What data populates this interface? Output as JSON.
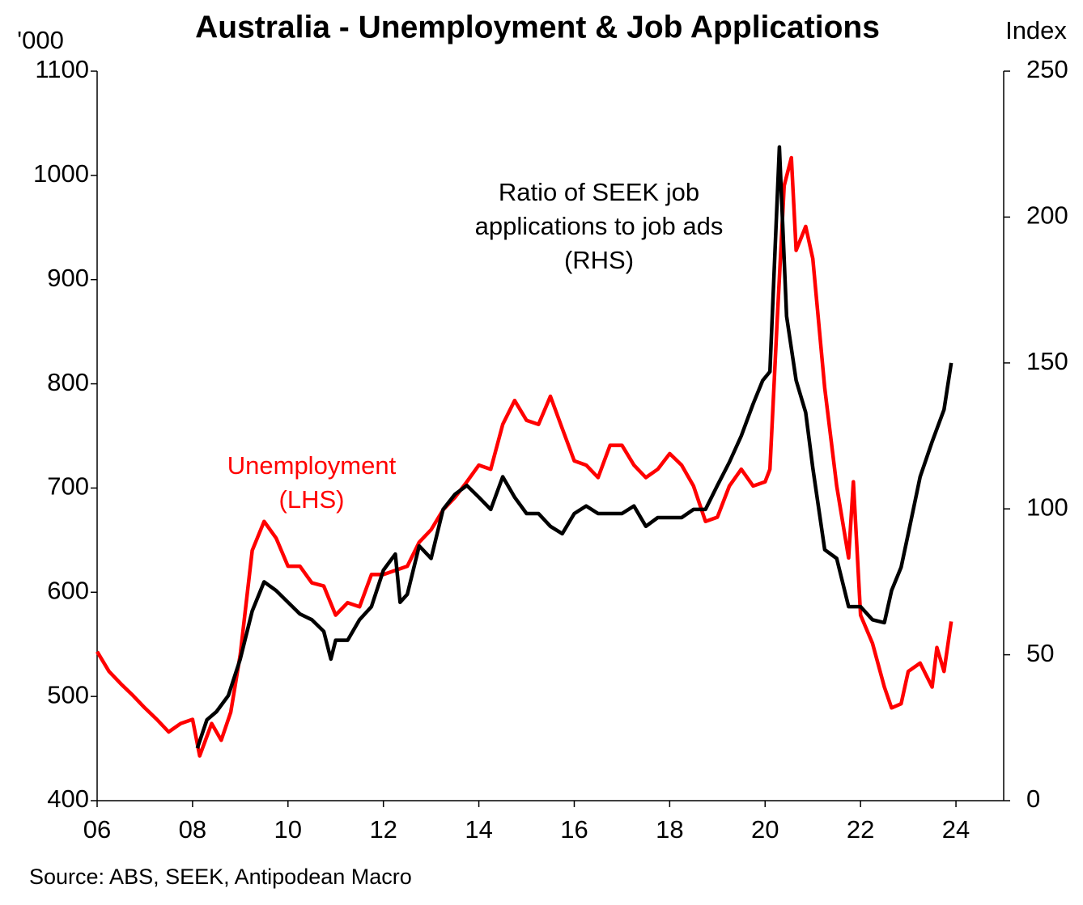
{
  "chart_data": {
    "type": "line",
    "title": "Australia - Unemployment & Job Applications",
    "y_label": "'000",
    "y2_label": "Index",
    "source": "Source: ABS, SEEK, Antipodean Macro",
    "annotations": [
      {
        "lines": [
          "Ratio of SEEK job",
          "applications to job ads",
          "(RHS)"
        ],
        "color": "#000000"
      },
      {
        "lines": [
          "Unemployment",
          "(LHS)"
        ],
        "color": "#ff0000"
      }
    ],
    "xlim": [
      2006,
      2025
    ],
    "xticks": [
      {
        "value": 2006,
        "label": "06"
      },
      {
        "value": 2008,
        "label": "08"
      },
      {
        "value": 2010,
        "label": "10"
      },
      {
        "value": 2012,
        "label": "12"
      },
      {
        "value": 2014,
        "label": "14"
      },
      {
        "value": 2016,
        "label": "16"
      },
      {
        "value": 2018,
        "label": "18"
      },
      {
        "value": 2020,
        "label": "20"
      },
      {
        "value": 2022,
        "label": "22"
      },
      {
        "value": 2024,
        "label": "24"
      }
    ],
    "ylim": [
      400,
      1100
    ],
    "yticks": [
      400,
      500,
      600,
      700,
      800,
      900,
      1000,
      1100
    ],
    "y2lim": [
      0,
      250
    ],
    "y2ticks": [
      0,
      50,
      100,
      150,
      200,
      250
    ],
    "series": [
      {
        "name": "Unemployment",
        "color": "#ff0000",
        "axis": "y",
        "x": [
          2006.0,
          2006.25,
          2006.5,
          2006.75,
          2007.0,
          2007.25,
          2007.5,
          2007.75,
          2008.0,
          2008.15,
          2008.4,
          2008.6,
          2008.8,
          2009.0,
          2009.25,
          2009.5,
          2009.75,
          2010.0,
          2010.25,
          2010.5,
          2010.75,
          2011.0,
          2011.25,
          2011.5,
          2011.75,
          2012.0,
          2012.25,
          2012.5,
          2012.75,
          2013.0,
          2013.25,
          2013.5,
          2013.75,
          2014.0,
          2014.25,
          2014.5,
          2014.75,
          2015.0,
          2015.25,
          2015.5,
          2015.75,
          2016.0,
          2016.25,
          2016.5,
          2016.75,
          2017.0,
          2017.25,
          2017.5,
          2017.75,
          2018.0,
          2018.25,
          2018.5,
          2018.75,
          2019.0,
          2019.25,
          2019.5,
          2019.75,
          2020.0,
          2020.1,
          2020.25,
          2020.4,
          2020.55,
          2020.65,
          2020.85,
          2021.0,
          2021.25,
          2021.5,
          2021.75,
          2021.85,
          2022.0,
          2022.25,
          2022.5,
          2022.65,
          2022.85,
          2023.0,
          2023.25,
          2023.5,
          2023.6,
          2023.75,
          2023.9
        ],
        "values": [
          543,
          524,
          512,
          501,
          489,
          478,
          466,
          474,
          478,
          443,
          474,
          458,
          485,
          540,
          640,
          668,
          652,
          625,
          625,
          609,
          606,
          578,
          590,
          586,
          617,
          617,
          621,
          625,
          648,
          660,
          679,
          691,
          706,
          722,
          718,
          761,
          784,
          765,
          761,
          788,
          757,
          726,
          722,
          710,
          741,
          741,
          722,
          710,
          718,
          733,
          722,
          702,
          668,
          672,
          702,
          718,
          702,
          706,
          718,
          858,
          990,
          1017,
          928,
          951,
          920,
          796,
          702,
          633,
          706,
          578,
          551,
          509,
          489,
          493,
          524,
          532,
          509,
          547,
          524,
          572
        ]
      },
      {
        "name": "Ratio of SEEK job applications to job ads",
        "color": "#000000",
        "axis": "y2",
        "x": [
          2008.1,
          2008.3,
          2008.5,
          2008.75,
          2009.0,
          2009.25,
          2009.5,
          2009.75,
          2010.0,
          2010.25,
          2010.5,
          2010.75,
          2010.9,
          2011.0,
          2011.25,
          2011.5,
          2011.75,
          2012.0,
          2012.25,
          2012.35,
          2012.5,
          2012.75,
          2013.0,
          2013.25,
          2013.5,
          2013.75,
          2014.0,
          2014.25,
          2014.5,
          2014.75,
          2015.0,
          2015.25,
          2015.5,
          2015.75,
          2016.0,
          2016.25,
          2016.5,
          2016.75,
          2017.0,
          2017.25,
          2017.5,
          2017.75,
          2018.0,
          2018.25,
          2018.5,
          2018.75,
          2019.0,
          2019.25,
          2019.5,
          2019.75,
          2019.95,
          2020.1,
          2020.3,
          2020.45,
          2020.65,
          2020.85,
          2021.0,
          2021.25,
          2021.5,
          2021.75,
          2022.0,
          2022.25,
          2022.5,
          2022.65,
          2022.85,
          2023.0,
          2023.25,
          2023.5,
          2023.75,
          2023.9
        ],
        "values": [
          18,
          27.7,
          30.5,
          36,
          48.5,
          65,
          75,
          72,
          68,
          64,
          62,
          58,
          48.5,
          55,
          55,
          62,
          66.5,
          79,
          84.5,
          68,
          70.7,
          87.3,
          83,
          99.8,
          105,
          108,
          104,
          99.8,
          111,
          104,
          98.4,
          98.4,
          94,
          91.5,
          98.4,
          101,
          98.4,
          98.4,
          98.4,
          101,
          94,
          97,
          97,
          97,
          99.8,
          99.8,
          108,
          116,
          125,
          136,
          144,
          147,
          224,
          166,
          144,
          133,
          114,
          86,
          83,
          66.5,
          66.5,
          62,
          61,
          72,
          80,
          91.5,
          111,
          123,
          134,
          150
        ]
      }
    ]
  }
}
